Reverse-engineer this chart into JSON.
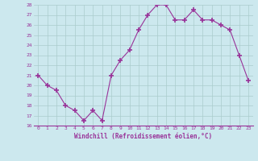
{
  "x": [
    0,
    1,
    2,
    3,
    4,
    5,
    6,
    7,
    8,
    9,
    10,
    11,
    12,
    13,
    14,
    15,
    16,
    17,
    18,
    19,
    20,
    21,
    22,
    23
  ],
  "y": [
    21.0,
    20.0,
    19.5,
    18.0,
    17.5,
    16.5,
    17.5,
    16.5,
    21.0,
    22.5,
    23.5,
    25.5,
    27.0,
    28.0,
    28.0,
    26.5,
    26.5,
    27.5,
    26.5,
    26.5,
    26.0,
    25.5,
    23.0,
    20.5
  ],
  "xlabel": "Windchill (Refroidissement éolien,°C)",
  "ylim": [
    16,
    28
  ],
  "xlim": [
    -0.5,
    23.5
  ],
  "yticks": [
    16,
    17,
    18,
    19,
    20,
    21,
    22,
    23,
    24,
    25,
    26,
    27,
    28
  ],
  "xticks": [
    0,
    1,
    2,
    3,
    4,
    5,
    6,
    7,
    8,
    9,
    10,
    11,
    12,
    13,
    14,
    15,
    16,
    17,
    18,
    19,
    20,
    21,
    22,
    23
  ],
  "line_color": "#993399",
  "marker_color": "#993399",
  "bg_color": "#cce8ee",
  "grid_color": "#aacccc",
  "xlabel_color": "#993399",
  "tick_color": "#993399"
}
